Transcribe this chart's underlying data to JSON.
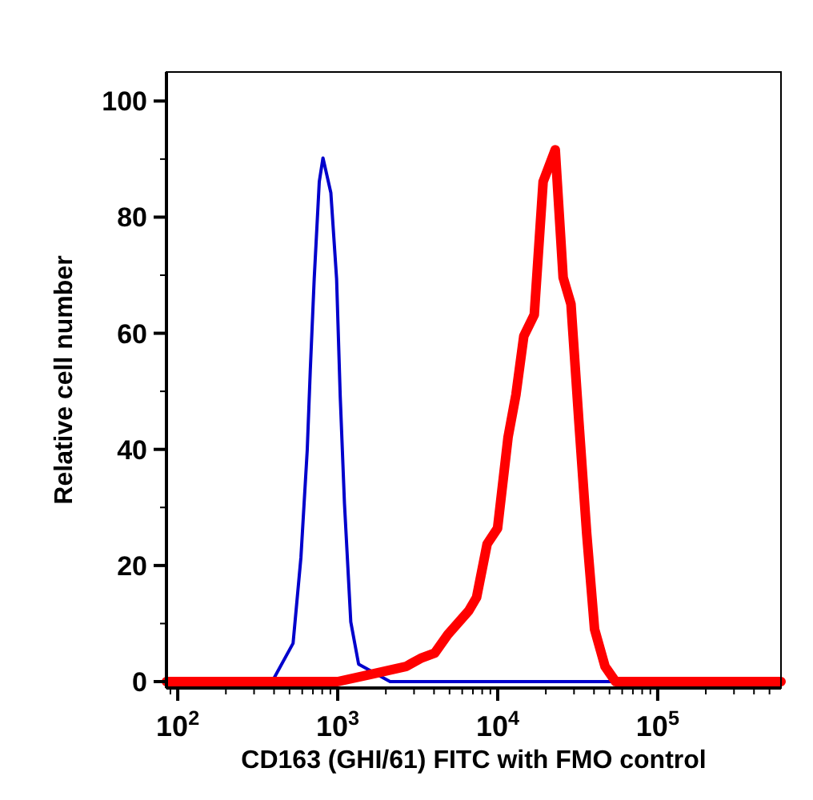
{
  "chart_data": {
    "type": "line",
    "xlabel": "CD163 (GHI/61) FITC with FMO control",
    "ylabel": "Relative cell number",
    "log": "x",
    "grid": false,
    "marker": "none",
    "line_style": "solid",
    "xlim": [
      85,
      590000
    ],
    "ylim": [
      -1.1,
      105
    ],
    "xticks": [
      {
        "value": 90,
        "label": null
      },
      {
        "value": 100,
        "label": "10$^{2}$"
      },
      {
        "value": 200,
        "label": null
      },
      {
        "value": 300,
        "label": null
      },
      {
        "value": 400,
        "label": null
      },
      {
        "value": 500,
        "label": null
      },
      {
        "value": 600,
        "label": null
      },
      {
        "value": 700,
        "label": null
      },
      {
        "value": 800,
        "label": null
      },
      {
        "value": 900,
        "label": null
      },
      {
        "value": 1000,
        "label": "10$^{3}$"
      },
      {
        "value": 2000,
        "label": null
      },
      {
        "value": 3000,
        "label": null
      },
      {
        "value": 4000,
        "label": null
      },
      {
        "value": 5000,
        "label": null
      },
      {
        "value": 6000,
        "label": null
      },
      {
        "value": 7000,
        "label": null
      },
      {
        "value": 8000,
        "label": null
      },
      {
        "value": 9000,
        "label": null
      },
      {
        "value": 10000,
        "label": "10$^{4}$"
      },
      {
        "value": 20000,
        "label": null
      },
      {
        "value": 30000,
        "label": null
      },
      {
        "value": 40000,
        "label": null
      },
      {
        "value": 50000,
        "label": null
      },
      {
        "value": 60000,
        "label": null
      },
      {
        "value": 70000,
        "label": null
      },
      {
        "value": 80000,
        "label": null
      },
      {
        "value": 90000,
        "label": null
      },
      {
        "value": 100000,
        "label": "10$^{5}$"
      },
      {
        "value": 200000,
        "label": null
      },
      {
        "value": 300000,
        "label": null
      },
      {
        "value": 400000,
        "label": null
      },
      {
        "value": 500000,
        "label": null
      }
    ],
    "yticks": [
      0,
      {
        "value": 10,
        "label": null
      },
      20,
      {
        "value": 30,
        "label": null
      },
      40,
      {
        "value": 50,
        "label": null
      },
      60,
      {
        "value": 70,
        "label": null
      },
      80,
      {
        "value": 90,
        "label": null
      },
      100
    ],
    "series": [
      {
        "color": "#0000cc",
        "x": [
          85,
          389,
          526,
          589,
          645,
          674,
          713,
          767,
          809,
          906,
          984,
          1037,
          1102,
          1207,
          1351,
          2125,
          590000
        ],
        "values": [
          0,
          0,
          6.6,
          21.4,
          39.9,
          53.7,
          69.4,
          86.1,
          90.2,
          84.2,
          69.4,
          49.1,
          30.7,
          10.3,
          3,
          0,
          0
        ]
      },
      {
        "color": "#ff0000",
        "x": [
          85,
          1000,
          1574,
          2666,
          3300,
          4036,
          4876,
          6592,
          7379,
          8590,
          9980,
          11610,
          13000,
          14560,
          16930,
          19230,
          22900,
          25650,
          28720,
          32170,
          36000,
          40330,
          46900,
          54550,
          590000
        ],
        "values": [
          0,
          0,
          1.2,
          2.6,
          4,
          4.9,
          8.1,
          12.2,
          14.5,
          23.7,
          26.4,
          42.1,
          49.4,
          59.5,
          63.2,
          86.1,
          91.6,
          69.6,
          65,
          44.8,
          25.5,
          9,
          2.6,
          0,
          0
        ]
      }
    ]
  }
}
